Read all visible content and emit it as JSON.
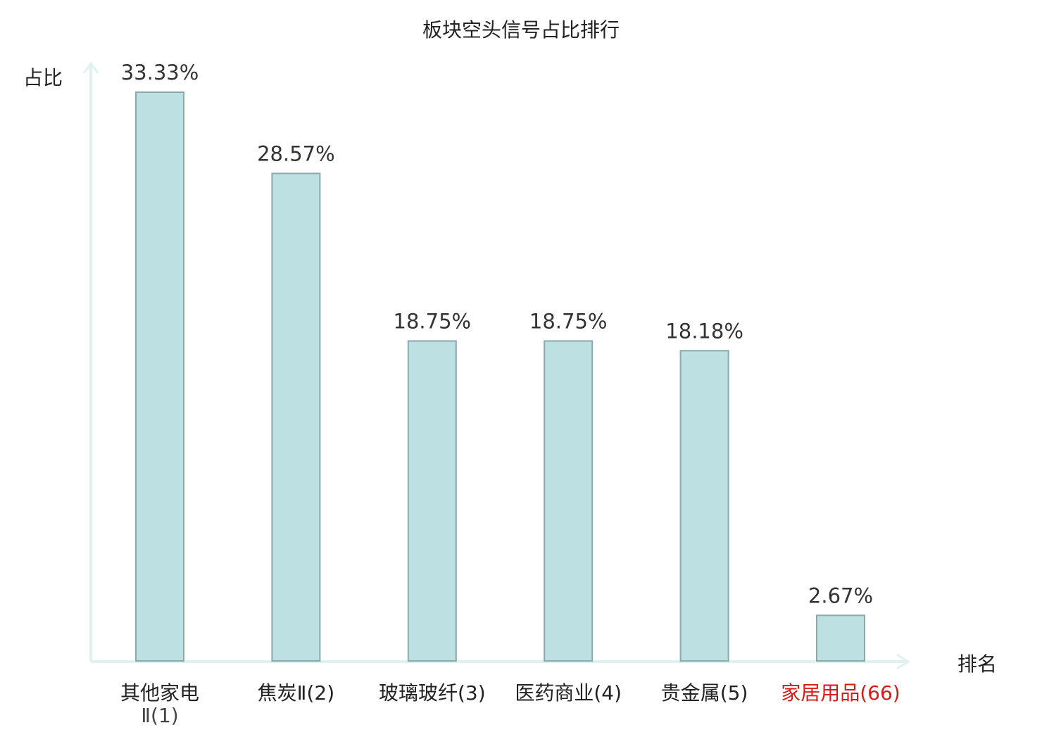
{
  "chart_data": {
    "type": "bar",
    "title": "板块空头信号占比排行",
    "ylabel": "占比",
    "xlabel": "排名",
    "categories": [
      {
        "name": "其他家电Ⅱ",
        "rank": "(1)",
        "line1": "其他家电",
        "line2": "Ⅱ(1)"
      },
      {
        "name": "焦炭Ⅱ",
        "rank": "(2)",
        "line1": "焦炭Ⅱ(2)"
      },
      {
        "name": "玻璃玻纤",
        "rank": "(3)",
        "line1": "玻璃玻纤(3)"
      },
      {
        "name": "医药商业",
        "rank": "(4)",
        "line1": "医药商业(4)"
      },
      {
        "name": "贵金属",
        "rank": "(5)",
        "line1": "贵金属(5)"
      },
      {
        "name": "家居用品",
        "rank": "(66)",
        "line1": "家居用品(66)",
        "highlight": true
      }
    ],
    "values": [
      33.33,
      28.57,
      18.75,
      18.75,
      18.18,
      2.67
    ],
    "value_labels": [
      "33.33%",
      "28.57%",
      "18.75%",
      "18.75%",
      "18.18%",
      "2.67%"
    ],
    "ylim": [
      0,
      35
    ],
    "grid": false,
    "colors": {
      "bar_fill": "#bde0e3",
      "bar_stroke": "#8aa9ad",
      "axis": "#e0f2ef",
      "highlight_text": "#d71a1a"
    }
  }
}
